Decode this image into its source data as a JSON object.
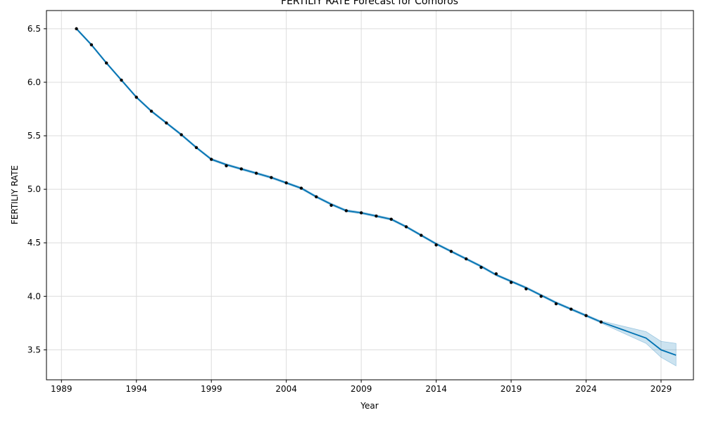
{
  "chart_data": {
    "type": "line",
    "title": "FERTILIY RATE Forecast for Comoros",
    "xlabel": "Year",
    "ylabel": "FERTILIY RATE",
    "xlim": [
      "1988-01-01",
      "2031-03-01"
    ],
    "ylim": [
      3.22,
      6.67
    ],
    "x_ticks": [
      {
        "date": "1989-01-01",
        "label": "1989"
      },
      {
        "date": "1994-01-01",
        "label": "1994"
      },
      {
        "date": "1999-01-01",
        "label": "1999"
      },
      {
        "date": "2004-01-01",
        "label": "2004"
      },
      {
        "date": "2009-01-01",
        "label": "2009"
      },
      {
        "date": "2014-01-01",
        "label": "2014"
      },
      {
        "date": "2019-01-01",
        "label": "2019"
      },
      {
        "date": "2024-01-01",
        "label": "2024"
      },
      {
        "date": "2029-01-01",
        "label": "2029"
      }
    ],
    "y_ticks": [
      {
        "value": 3.5,
        "label": "3.5"
      },
      {
        "value": 4.0,
        "label": "4.0"
      },
      {
        "value": 4.5,
        "label": "4.5"
      },
      {
        "value": 5.0,
        "label": "5.0"
      },
      {
        "value": 5.5,
        "label": "5.5"
      },
      {
        "value": 6.0,
        "label": "6.0"
      },
      {
        "value": 6.5,
        "label": "6.5"
      }
    ],
    "grid": true,
    "colors": {
      "line": "#0072B2",
      "band": "#0072B2",
      "points": "#000000",
      "grid": "#dcdcdc"
    },
    "observed": {
      "x": [
        "1990-01-01",
        "1991-01-01",
        "1992-01-01",
        "1993-01-01",
        "1994-01-01",
        "1995-01-01",
        "1996-01-01",
        "1997-01-01",
        "1998-01-01",
        "1999-01-01",
        "2000-01-01",
        "2001-01-01",
        "2002-01-01",
        "2003-01-01",
        "2004-01-01",
        "2005-01-01",
        "2006-01-01",
        "2007-01-01",
        "2008-01-01",
        "2009-01-01",
        "2010-01-01",
        "2011-01-01",
        "2012-01-01",
        "2013-01-01",
        "2014-01-01",
        "2015-01-01",
        "2016-01-01",
        "2017-01-01",
        "2018-01-01",
        "2019-01-01",
        "2020-01-01",
        "2021-01-01",
        "2022-01-01",
        "2023-01-01",
        "2024-01-01",
        "2025-01-01"
      ],
      "y": [
        6.5,
        6.35,
        6.18,
        6.02,
        5.86,
        5.73,
        5.62,
        5.51,
        5.39,
        5.28,
        5.22,
        5.19,
        5.15,
        5.11,
        5.06,
        5.01,
        4.93,
        4.85,
        4.8,
        4.78,
        4.75,
        4.72,
        4.65,
        4.57,
        4.48,
        4.42,
        4.35,
        4.27,
        4.21,
        4.13,
        4.07,
        4.0,
        3.93,
        3.88,
        3.82,
        3.76
      ]
    },
    "forecast": {
      "x": [
        "1990-01-01",
        "1991-01-01",
        "1992-01-01",
        "1993-01-01",
        "1994-01-01",
        "1995-01-01",
        "1996-01-01",
        "1997-01-01",
        "1998-01-01",
        "1999-01-01",
        "2000-01-01",
        "2001-01-01",
        "2002-01-01",
        "2003-01-01",
        "2004-01-01",
        "2005-01-01",
        "2006-01-01",
        "2007-01-01",
        "2008-01-01",
        "2009-01-01",
        "2010-01-01",
        "2011-01-01",
        "2012-01-01",
        "2013-01-01",
        "2014-01-01",
        "2015-01-01",
        "2016-01-01",
        "2017-01-01",
        "2018-01-01",
        "2019-01-01",
        "2020-01-01",
        "2021-01-01",
        "2022-01-01",
        "2023-01-01",
        "2024-01-01",
        "2025-01-01",
        "2028-01-01",
        "2029-01-01",
        "2030-01-01"
      ],
      "yhat": [
        6.5,
        6.35,
        6.18,
        6.02,
        5.86,
        5.73,
        5.62,
        5.51,
        5.39,
        5.28,
        5.23,
        5.19,
        5.15,
        5.11,
        5.06,
        5.01,
        4.93,
        4.86,
        4.8,
        4.78,
        4.75,
        4.72,
        4.65,
        4.57,
        4.49,
        4.42,
        4.35,
        4.28,
        4.2,
        4.14,
        4.08,
        4.01,
        3.94,
        3.88,
        3.82,
        3.76,
        3.61,
        3.5,
        3.45
      ],
      "lower": [
        6.49,
        6.34,
        6.17,
        6.01,
        5.85,
        5.72,
        5.61,
        5.5,
        5.38,
        5.27,
        5.22,
        5.18,
        5.14,
        5.1,
        5.05,
        5.0,
        4.92,
        4.85,
        4.79,
        4.77,
        4.74,
        4.71,
        4.64,
        4.56,
        4.48,
        4.41,
        4.34,
        4.27,
        4.19,
        4.13,
        4.07,
        4.0,
        3.93,
        3.87,
        3.81,
        3.75,
        3.56,
        3.43,
        3.35
      ],
      "upper": [
        6.51,
        6.36,
        6.19,
        6.03,
        5.87,
        5.74,
        5.63,
        5.52,
        5.4,
        5.29,
        5.24,
        5.2,
        5.16,
        5.12,
        5.07,
        5.02,
        4.94,
        4.87,
        4.81,
        4.79,
        4.76,
        4.73,
        4.66,
        4.58,
        4.5,
        4.43,
        4.36,
        4.29,
        4.21,
        4.15,
        4.09,
        4.02,
        3.95,
        3.89,
        3.83,
        3.77,
        3.67,
        3.58,
        3.56
      ]
    }
  }
}
